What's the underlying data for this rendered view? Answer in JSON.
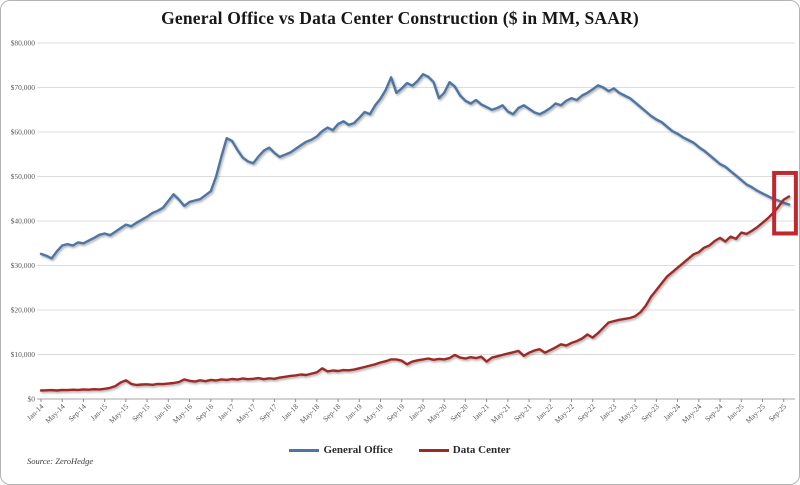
{
  "source_note": "Source: ZeroHedge",
  "colors": {
    "general_office": "#4d76a3",
    "data_center": "#9e2a25",
    "highlight_box": "#c1272d",
    "gridline": "#dcdcdc",
    "zero_line": "#a6a6a6",
    "tick": "#8c8c8c",
    "axis_text": "#595959"
  },
  "chart_data": {
    "type": "line",
    "title": "General Office vs Data Center Construction ($ in MM, SAAR)",
    "xlabel": "",
    "ylabel": "",
    "x_frequency": "monthly",
    "x_start": "Jan-2014",
    "x_end": "Oct-2025",
    "ylim": [
      0,
      80000
    ],
    "y_tick_interval": 10000,
    "y_tick_labels": [
      "$0",
      "$10,000",
      "$20,000",
      "$30,000",
      "$40,000",
      "$50,000",
      "$60,000",
      "$70,000",
      "$80,000"
    ],
    "x_tick_every_n_months": 4,
    "x_tick_labels": [
      "Jan-14",
      "May-14",
      "Sep-14",
      "Jan-15",
      "May-15",
      "Sep-15",
      "Jan-16",
      "May-16",
      "Sep-16",
      "Jan-17",
      "May-17",
      "Sep-17",
      "Jan-18",
      "May-18",
      "Sep-18",
      "Jan-19",
      "May-19",
      "Sep-19",
      "Jan-20",
      "May-20",
      "Sep-20",
      "Jan-21",
      "May-21",
      "Sep-21",
      "Jan-22",
      "May-22",
      "Sep-22",
      "Jan-23",
      "May-23",
      "Sep-23",
      "Jan-24",
      "May-24",
      "Sep-24",
      "Jan-25",
      "May-25",
      "Sep-25"
    ],
    "grid": "horizontal",
    "legend_position": "bottom",
    "style": {
      "gridline": "#dcdcdc",
      "zero_line": "#a6a6a6",
      "tick": "#8c8c8c"
    },
    "series": [
      {
        "name": "General Office",
        "color": "#4d76a3",
        "values": [
          32600,
          32200,
          31600,
          33200,
          34500,
          34800,
          34500,
          35200,
          35000,
          35600,
          36200,
          36900,
          37200,
          36800,
          37600,
          38400,
          39200,
          38800,
          39600,
          40300,
          41000,
          41800,
          42300,
          43000,
          44500,
          46000,
          44800,
          43400,
          44300,
          44600,
          44900,
          45800,
          46700,
          50000,
          54500,
          58600,
          58000,
          56000,
          54300,
          53400,
          53000,
          54500,
          55800,
          56500,
          55300,
          54400,
          54900,
          55400,
          56200,
          57000,
          57800,
          58300,
          59000,
          60200,
          61000,
          60400,
          61800,
          62400,
          61600,
          62000,
          63200,
          64500,
          64000,
          66000,
          67500,
          69500,
          72300,
          68800,
          69800,
          71000,
          70400,
          71500,
          73000,
          72400,
          71200,
          67600,
          68800,
          71200,
          70200,
          68200,
          67000,
          66400,
          67200,
          66200,
          65600,
          65000,
          65400,
          66000,
          64600,
          64000,
          65400,
          66000,
          65200,
          64400,
          64000,
          64600,
          65400,
          66400,
          66000,
          67000,
          67600,
          67200,
          68200,
          68800,
          69600,
          70500,
          70000,
          69200,
          69800,
          68800,
          68200,
          67600,
          66600,
          65600,
          64600,
          63600,
          62800,
          62200,
          61200,
          60200,
          59600,
          58800,
          58200,
          57600,
          56600,
          55800,
          54800,
          53800,
          52800,
          52200,
          51200,
          50200,
          49200,
          48200,
          47600,
          46800,
          46200,
          45600,
          45000,
          44600,
          44100,
          43700
        ]
      },
      {
        "name": "Data Center",
        "color": "#9e2a25",
        "values": [
          1900,
          1950,
          2000,
          1900,
          2050,
          2000,
          2100,
          2050,
          2150,
          2100,
          2200,
          2150,
          2300,
          2500,
          2900,
          3700,
          4200,
          3400,
          3150,
          3250,
          3300,
          3200,
          3400,
          3350,
          3450,
          3600,
          3800,
          4400,
          4100,
          3900,
          4200,
          4000,
          4300,
          4150,
          4400,
          4300,
          4500,
          4350,
          4600,
          4450,
          4550,
          4700,
          4450,
          4650,
          4550,
          4800,
          5000,
          5200,
          5300,
          5500,
          5400,
          5700,
          6000,
          6900,
          6200,
          6400,
          6300,
          6500,
          6450,
          6600,
          6900,
          7200,
          7500,
          7800,
          8200,
          8500,
          8900,
          8900,
          8600,
          7800,
          8400,
          8700,
          8900,
          9100,
          8800,
          9000,
          8900,
          9200,
          9900,
          9300,
          9100,
          9400,
          9200,
          9500,
          8400,
          9300,
          9600,
          9900,
          10200,
          10500,
          10800,
          9700,
          10400,
          10900,
          11200,
          10400,
          11000,
          11600,
          12300,
          12000,
          12600,
          13000,
          13600,
          14500,
          13800,
          14800,
          16000,
          17200,
          17500,
          17800,
          18000,
          18200,
          18600,
          19500,
          21000,
          23000,
          24500,
          26000,
          27500,
          28500,
          29500,
          30500,
          31500,
          32500,
          33000,
          34000,
          34500,
          35500,
          36200,
          35400,
          36500,
          36000,
          37400,
          37100,
          37800,
          38600,
          39600,
          40600,
          41800,
          43200,
          44800,
          45500
        ]
      }
    ],
    "annotation": {
      "type": "highlight-box",
      "description": "Red box highlighting where Data Center construction crosses above General Office construction",
      "x_start_month_index": 138.2,
      "x_end_month_index": 142.3,
      "y_min": 37200,
      "y_max": 50800,
      "color": "#c1272d"
    }
  }
}
